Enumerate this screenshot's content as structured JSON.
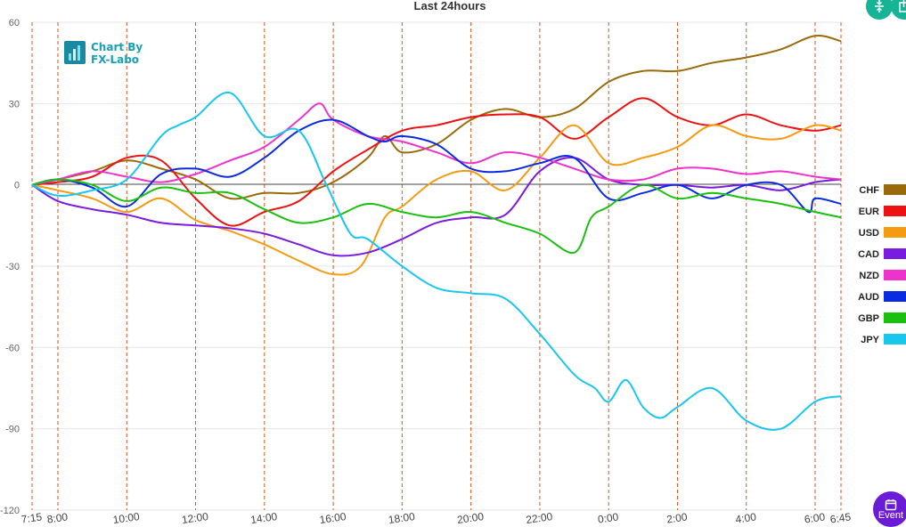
{
  "controls": {
    "event_label": "Event",
    "fit_icon": "fit-vertical-icon",
    "export_icon": "export-icon",
    "event_icon": "calendar-icon"
  },
  "logo": {
    "line1": "Chart By",
    "line2": "FX-Labo"
  },
  "chart_data": {
    "type": "line",
    "title": "Last 24hours",
    "xlabel": "",
    "ylabel": "",
    "ylim": [
      -120,
      60
    ],
    "yticks": [
      60,
      30,
      0,
      -30,
      -60,
      -90,
      -120
    ],
    "xlim": [
      7.25,
      30.75
    ],
    "x_tick_positions": [
      7.25,
      8,
      10,
      12,
      14,
      16,
      18,
      20,
      22,
      24,
      26,
      28,
      30,
      30.75
    ],
    "x_tick_labels": [
      "7:15",
      "8:00",
      "10:00",
      "12:00",
      "14:00",
      "16:00",
      "18:00",
      "20:00",
      "22:00",
      "0:00",
      "2:00",
      "4:00",
      "6:00",
      "6:45"
    ],
    "x_unit_note": "",
    "grid": true,
    "vertical_gridlines": "dashed",
    "legend_position": "right",
    "series": [
      {
        "name": "CHF",
        "color": "#9a6a0a",
        "x": [
          7.25,
          8,
          9,
          10,
          11,
          12,
          13,
          14,
          15,
          16,
          17,
          17.5,
          18,
          19,
          20,
          21,
          22,
          23,
          24,
          25,
          26,
          27,
          28,
          29,
          30,
          30.75
        ],
        "values": [
          0,
          2,
          5,
          9,
          6,
          2,
          -5,
          -3,
          -3,
          1,
          10,
          18,
          12,
          15,
          24,
          28,
          25,
          28,
          38,
          42,
          42,
          45,
          47,
          50,
          55,
          53
        ]
      },
      {
        "name": "EUR",
        "color": "#ee1111",
        "x": [
          7.25,
          8,
          9,
          10,
          11,
          12,
          13,
          14,
          15,
          16,
          17,
          18,
          19,
          20,
          21,
          22,
          23,
          24,
          25,
          26,
          27,
          28,
          29,
          30,
          30.75
        ],
        "values": [
          0,
          1,
          3,
          10,
          9,
          -5,
          -15,
          -10,
          -6,
          5,
          13,
          20,
          22,
          25,
          26,
          25,
          17,
          25,
          32,
          25,
          22,
          26,
          22,
          20,
          22
        ]
      },
      {
        "name": "USD",
        "color": "#f59a13",
        "x": [
          7.25,
          8,
          9,
          10,
          11,
          12,
          13,
          14,
          15,
          16,
          16.8,
          17.5,
          18,
          19,
          20,
          21,
          22,
          23,
          24,
          25,
          26,
          27,
          28,
          29,
          30,
          30.75
        ],
        "values": [
          0,
          -2,
          -5,
          -10,
          -5,
          -13,
          -17,
          -22,
          -28,
          -33,
          -30,
          -12,
          -8,
          2,
          5,
          -2,
          10,
          22,
          8,
          10,
          14,
          22,
          18,
          17,
          22,
          20
        ]
      },
      {
        "name": "CAD",
        "color": "#7a1be0",
        "x": [
          7.25,
          8,
          9,
          10,
          11,
          12,
          13,
          14,
          15,
          16,
          17,
          18,
          19,
          20,
          21,
          22,
          23,
          24,
          25,
          26,
          27,
          28,
          29,
          30,
          30.75
        ],
        "values": [
          0,
          -6,
          -9,
          -11,
          -14,
          -15,
          -16,
          -18,
          -22,
          -26,
          -25,
          -20,
          -14,
          -12,
          -11,
          5,
          10,
          2,
          0,
          0,
          -1,
          0,
          -2,
          1,
          2
        ]
      },
      {
        "name": "NZD",
        "color": "#ee33cc",
        "x": [
          7.25,
          8,
          9,
          10,
          11,
          12,
          13,
          14,
          15,
          15.6,
          16,
          17,
          18,
          19,
          20,
          21,
          22,
          23,
          24,
          25,
          26,
          27,
          28,
          29,
          30,
          30.75
        ],
        "values": [
          0,
          2,
          5,
          3,
          1,
          4,
          9,
          14,
          24,
          30,
          24,
          18,
          16,
          12,
          8,
          12,
          10,
          6,
          2,
          2,
          6,
          6,
          4,
          5,
          3,
          2
        ]
      },
      {
        "name": "AUD",
        "color": "#0a2be0",
        "x": [
          7.25,
          8,
          9,
          10,
          11,
          12,
          13,
          14,
          15,
          16,
          17,
          17.5,
          18,
          19,
          20,
          21,
          22,
          23,
          24,
          25,
          26,
          27,
          28,
          29,
          29.8,
          30,
          30.75
        ],
        "values": [
          0,
          2,
          -1,
          -8,
          4,
          6,
          3,
          10,
          20,
          24,
          18,
          16,
          18,
          15,
          6,
          5,
          8,
          10,
          -5,
          -3,
          0,
          -5,
          0,
          0,
          -10,
          -5,
          -7
        ]
      },
      {
        "name": "GBP",
        "color": "#19c10e",
        "x": [
          7.25,
          8,
          9,
          10,
          11,
          12,
          13,
          14,
          15,
          16,
          17,
          18,
          19,
          20,
          21,
          22,
          23,
          23.5,
          24,
          25,
          26,
          27,
          28,
          29,
          30,
          30.75
        ],
        "values": [
          0,
          2,
          0,
          -6,
          -1,
          -3,
          -3,
          -9,
          -14,
          -12,
          -7,
          -10,
          -12,
          -10,
          -14,
          -18,
          -25,
          -12,
          -8,
          0,
          -5,
          -3,
          -5,
          -7,
          -10,
          -12
        ]
      },
      {
        "name": "JPY",
        "color": "#18c6ee",
        "x": [
          7.25,
          8,
          9,
          10,
          11,
          11.5,
          12,
          13,
          14,
          15,
          15.8,
          16.5,
          17,
          18,
          19,
          20,
          21,
          22,
          23,
          23.6,
          24,
          24.5,
          25,
          25.5,
          26,
          27,
          28,
          29,
          30,
          30.75
        ],
        "values": [
          0,
          -4,
          -2,
          2,
          18,
          22,
          25,
          34,
          18,
          20,
          0,
          -18,
          -20,
          -30,
          -38,
          -40,
          -42,
          -55,
          -70,
          -75,
          -80,
          -72,
          -82,
          -86,
          -82,
          -75,
          -87,
          -90,
          -80,
          -78
        ]
      }
    ]
  }
}
